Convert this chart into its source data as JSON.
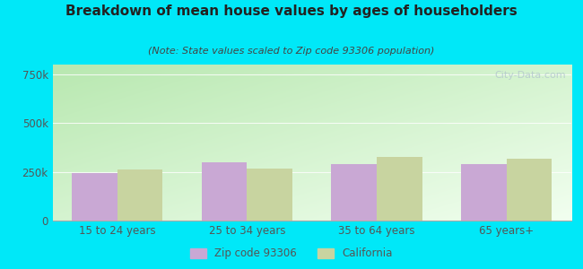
{
  "title": "Breakdown of mean house values by ages of householders",
  "subtitle": "(Note: State values scaled to Zip code 93306 population)",
  "categories": [
    "15 to 24 years",
    "25 to 34 years",
    "35 to 64 years",
    "65 years+"
  ],
  "zip_values": [
    245000,
    300000,
    290000,
    290000
  ],
  "ca_values": [
    260000,
    265000,
    325000,
    315000
  ],
  "zip_color": "#c9a8d4",
  "ca_color": "#c8d4a0",
  "ylim": [
    0,
    800000
  ],
  "yticks": [
    0,
    250000,
    500000,
    750000
  ],
  "ytick_labels": [
    "0",
    "250k",
    "500k",
    "750k"
  ],
  "grad_color_topleft": "#b8e8b0",
  "grad_color_bottomright": "#f0fff0",
  "outer_bg": "#00e8f8",
  "legend_zip": "Zip code 93306",
  "legend_ca": "California",
  "watermark": "City-Data.com",
  "bar_width": 0.35,
  "title_color": "#222222",
  "subtitle_color": "#444444",
  "tick_color": "#555555",
  "grid_color": "#e8e8e8"
}
